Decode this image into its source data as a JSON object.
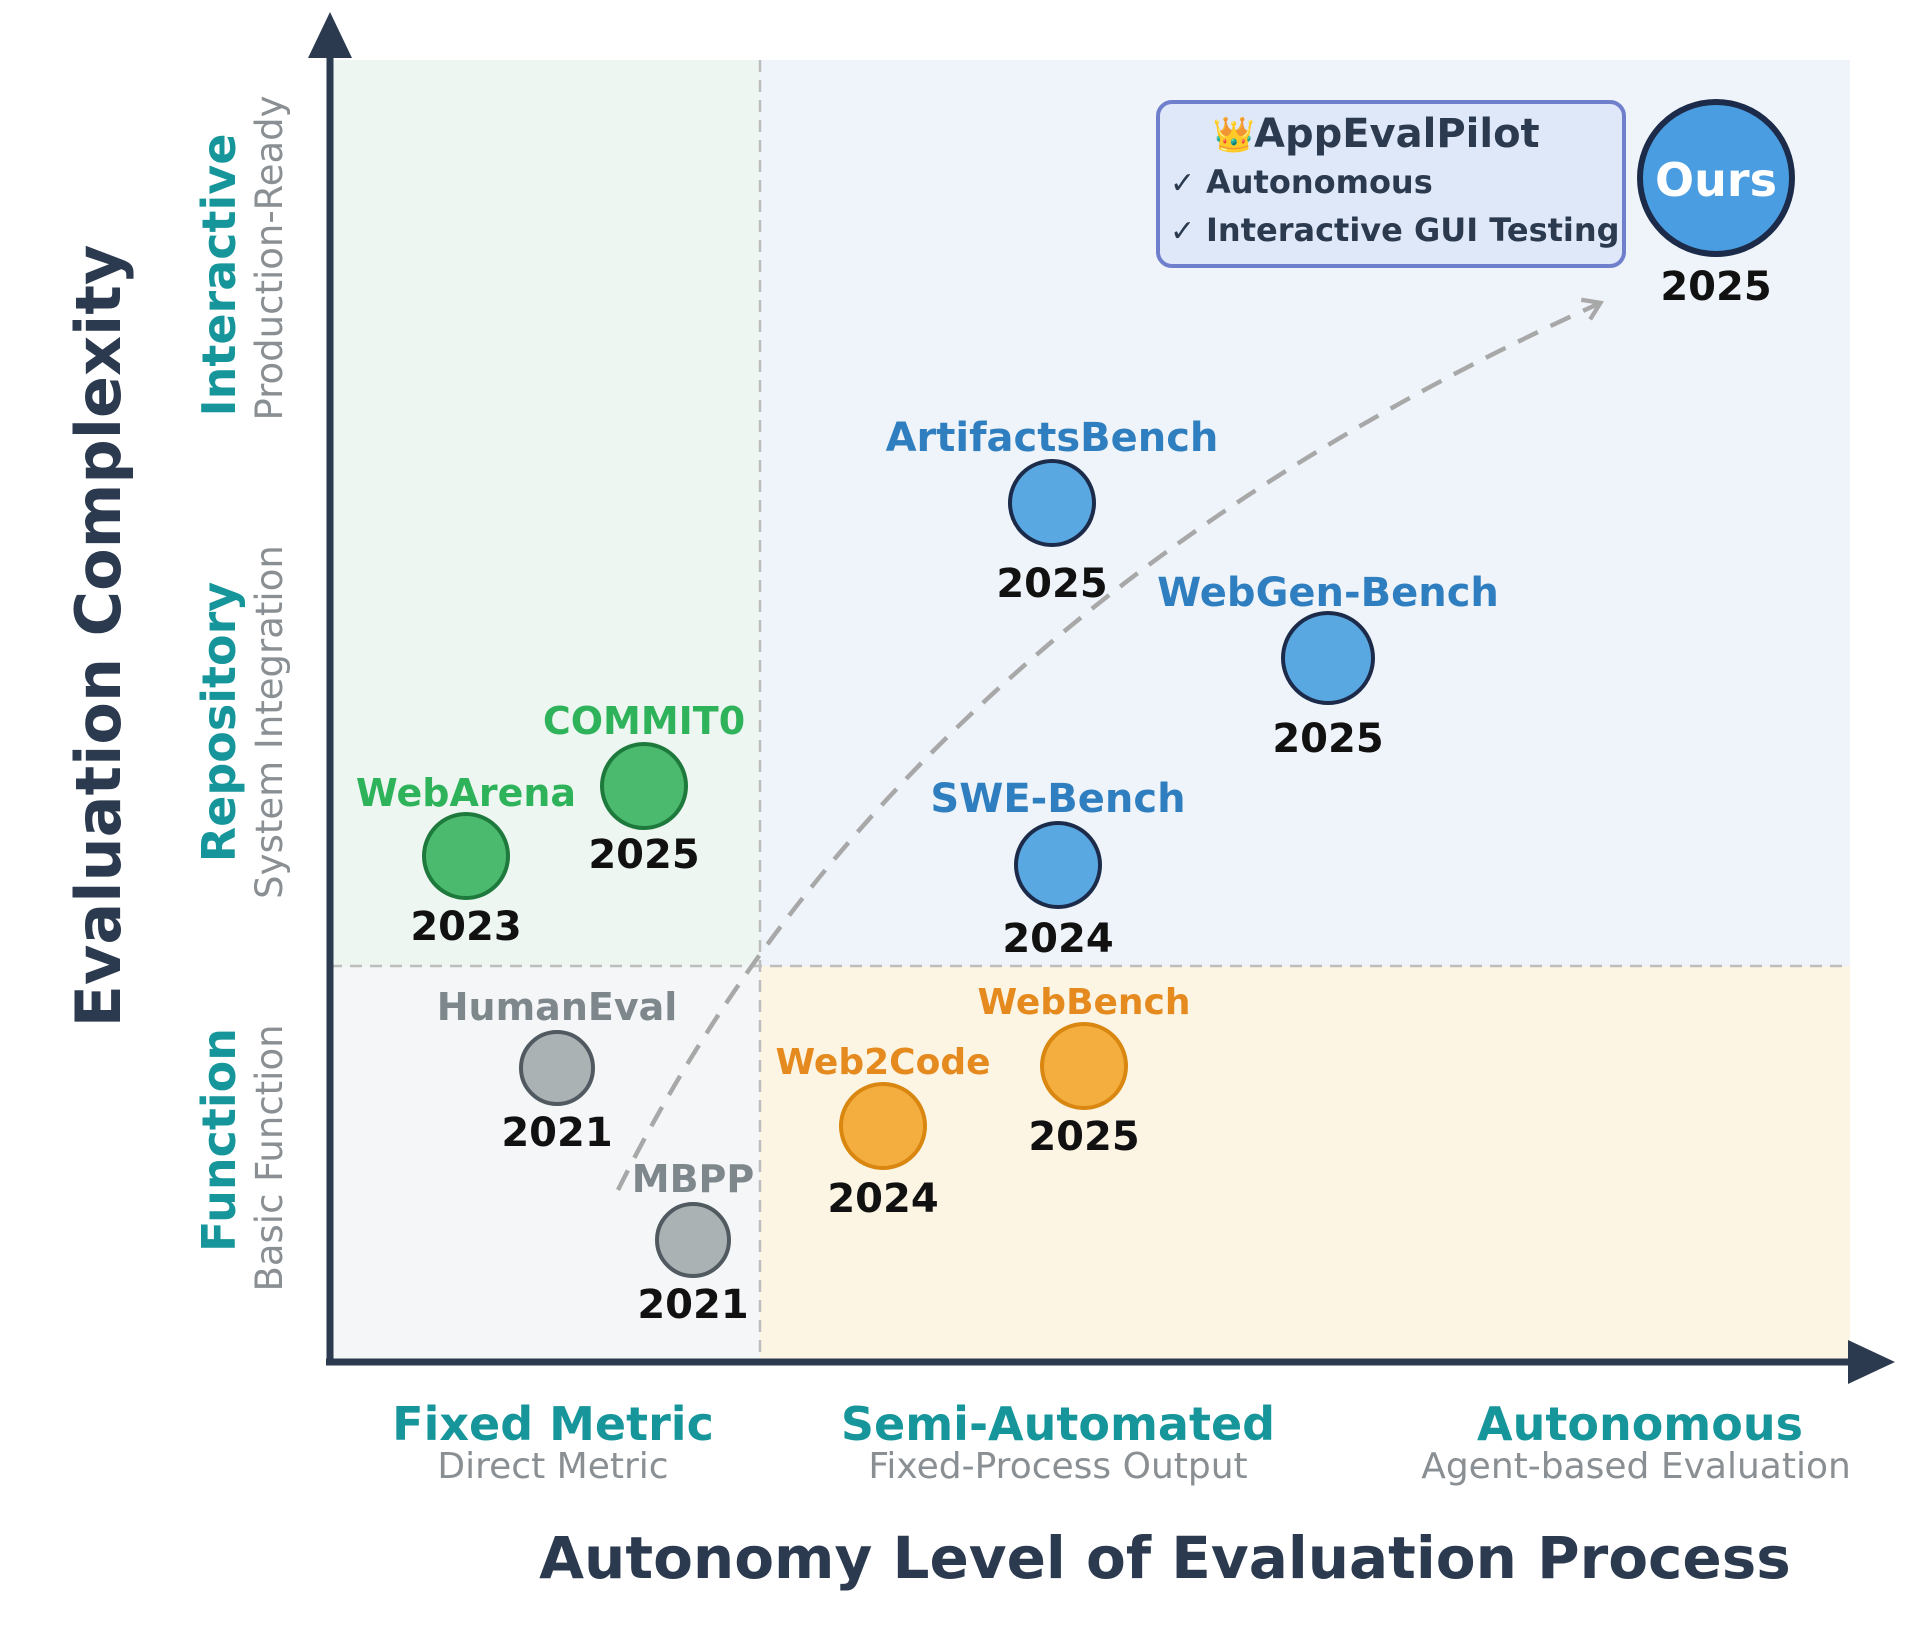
{
  "y_axis": {
    "title": "Evaluation Complexity",
    "levels": [
      {
        "id": "interactive",
        "label": "Interactive",
        "sublabel": "Production-Ready"
      },
      {
        "id": "repository",
        "label": "Repository",
        "sublabel": "System Integration"
      },
      {
        "id": "function",
        "label": "Function",
        "sublabel": "Basic Function"
      }
    ]
  },
  "x_axis": {
    "title": "Autonomy Level of Evaluation Process",
    "levels": [
      {
        "id": "fixed-metric",
        "label": "Fixed Metric",
        "sublabel": "Direct Metric"
      },
      {
        "id": "semi-automated",
        "label": "Semi-Automated",
        "sublabel": "Fixed-Process Output"
      },
      {
        "id": "autonomous",
        "label": "Autonomous",
        "sublabel": "Agent-based  Evaluation"
      }
    ]
  },
  "benchmarks": [
    {
      "name": "WebArena",
      "year": "2023",
      "color": "#4cba6e",
      "stroke": "#1e7a3c",
      "label_color": "#2fb35a"
    },
    {
      "name": "COMMIT0",
      "year": "2025",
      "color": "#4cba6e",
      "stroke": "#1e7a3c",
      "label_color": "#2fb35a"
    },
    {
      "name": "HumanEval",
      "year": "2021",
      "color": "#aab2b4",
      "stroke": "#505a60",
      "label_color": "#7d878c"
    },
    {
      "name": "MBPP",
      "year": "2021",
      "color": "#aab2b4",
      "stroke": "#505a60",
      "label_color": "#7d878c"
    },
    {
      "name": "Web2Code",
      "year": "2024",
      "color": "#f4ae3f",
      "stroke": "#d98710",
      "label_color": "#e58a1f"
    },
    {
      "name": "WebBench",
      "year": "2025",
      "color": "#f4ae3f",
      "stroke": "#d98710",
      "label_color": "#e58a1f"
    },
    {
      "name": "ArtifactsBench",
      "year": "2025",
      "color": "#5aa8e2",
      "stroke": "#1c2b4a",
      "label_color": "#2f7fc0"
    },
    {
      "name": "WebGen-Bench",
      "year": "2025",
      "color": "#5aa8e2",
      "stroke": "#1c2b4a",
      "label_color": "#2f7fc0"
    },
    {
      "name": "SWE-Bench",
      "year": "2024",
      "color": "#5aa8e2",
      "stroke": "#1c2b4a",
      "label_color": "#2f7fc0"
    }
  ],
  "ours": {
    "circle_label": "Ours",
    "year": "2025",
    "color": "#4a9de0",
    "stroke": "#1c2b4a",
    "callout": {
      "icon": "crown-icon",
      "icon_glyph": "👑",
      "title": "AppEvalPilot",
      "check_glyph": "✓",
      "features": [
        "Autonomous",
        "Interactive GUI Testing"
      ]
    }
  },
  "colors": {
    "axis": "#2b3a4f",
    "teal": "#16969a",
    "sublabel_gray": "#8a8f93",
    "region_green": "#eef6f2",
    "region_gray": "#f4f6f7",
    "region_blue": "#eef4f9",
    "region_yellow": "#fdf5e3"
  }
}
